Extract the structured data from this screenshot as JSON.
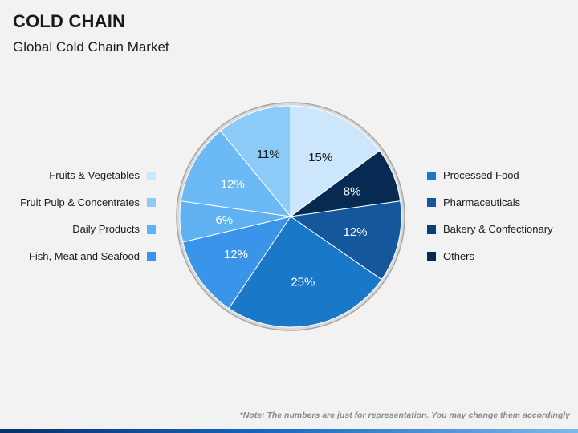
{
  "header": {
    "title": "COLD CHAIN",
    "subtitle": "Global Cold Chain Market"
  },
  "legend_left": [
    {
      "label": "Fruits & Vegetables",
      "color": "#cce7fb"
    },
    {
      "label": "Fruit Pulp & Concentrates",
      "color": "#8ccaf8"
    },
    {
      "label": "Daily Products",
      "color": "#5fb1f2"
    },
    {
      "label": "Fish, Meat and Seafood",
      "color": "#3a95ea"
    }
  ],
  "legend_right": [
    {
      "label": "Processed Food",
      "color": "#1a78c9"
    },
    {
      "label": "Pharmaceuticals",
      "color": "#15579c"
    },
    {
      "label": "Bakery & Confectionary",
      "color": "#0c3d70"
    },
    {
      "label": "Others",
      "color": "#062a52"
    }
  ],
  "chart_data": {
    "type": "pie",
    "slices": [
      {
        "value": 15,
        "label": "15%",
        "color": "#cce7fb",
        "label_color": "#1a1a1a"
      },
      {
        "value": 8,
        "label": "8%",
        "color": "#062a52",
        "label_color": "#ffffff"
      },
      {
        "value": 12,
        "label": "12%",
        "color": "#15579c",
        "label_color": "#ffffff"
      },
      {
        "value": 25,
        "label": "25%",
        "color": "#1a78c9",
        "label_color": "#ffffff"
      },
      {
        "value": 12,
        "label": "12%",
        "color": "#3a95ea",
        "label_color": "#ffffff"
      },
      {
        "value": 6,
        "label": "6%",
        "color": "#5fb1f2",
        "label_color": "#ffffff"
      },
      {
        "value": 12,
        "label": "12%",
        "color": "#6bbaf5",
        "label_color": "#ffffff"
      },
      {
        "value": 11,
        "label": "11%",
        "color": "#8ccaf8",
        "label_color": "#1a1a1a"
      }
    ]
  },
  "footer": {
    "note": "*Note: The numbers are just for representation. You may change them accordingly"
  }
}
